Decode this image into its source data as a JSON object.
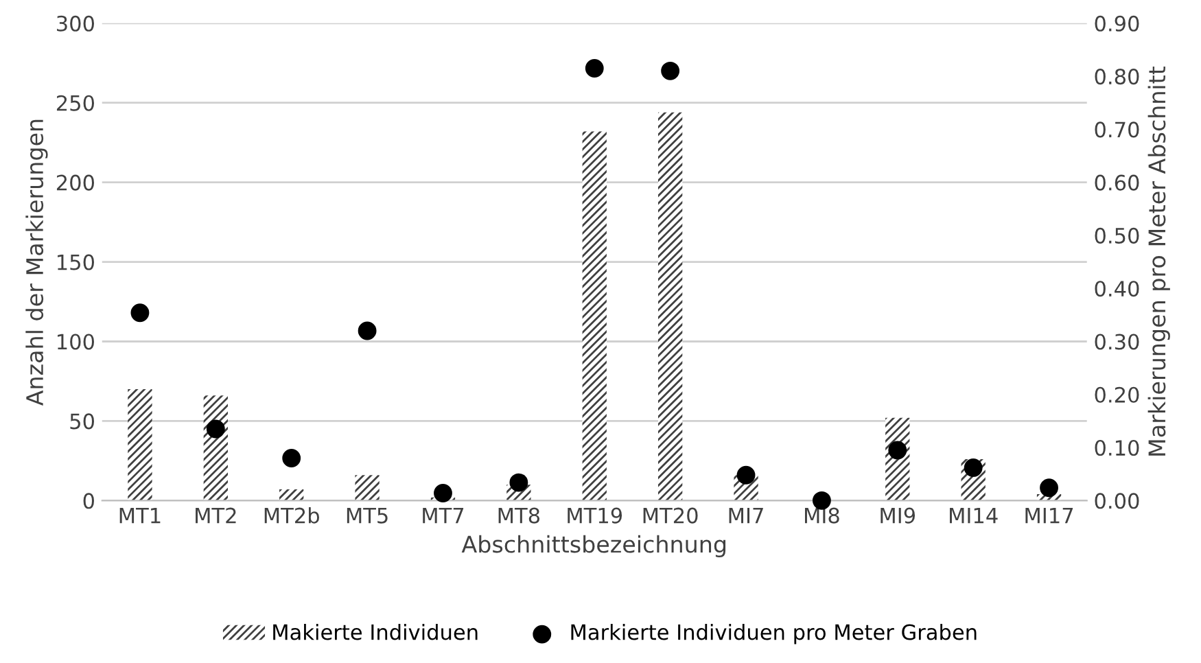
{
  "chart_data": {
    "type": "bar",
    "xlabel": "Abschnittsbezeichnung",
    "ylabel": "Anzahl der Markierungen",
    "y2label": "Markierungen pro Meter Abschnitt",
    "categories": [
      "MT1",
      "MT2",
      "MT2b",
      "MT5",
      "MT7",
      "MT8",
      "MT19",
      "MT20",
      "MI7",
      "MI8",
      "MI9",
      "MI14",
      "MI17"
    ],
    "series": [
      {
        "name": "Makierte Individuen",
        "color": "#404040",
        "values": [
          70,
          66,
          7,
          16,
          2,
          10,
          232,
          244,
          16,
          0,
          52,
          26,
          4
        ]
      },
      {
        "name": "Markierte Individuen pro Meter Graben",
        "type": "scatter",
        "axis": "y2",
        "color": "#000000",
        "marker": "circle",
        "values": [
          0.354,
          0.135,
          0.08,
          0.32,
          0.014,
          0.034,
          0.815,
          0.81,
          0.048,
          0.0,
          0.095,
          0.062,
          0.024
        ]
      }
    ],
    "ylim": [
      0,
      300
    ],
    "yticks": [
      0,
      50,
      100,
      150,
      200,
      250,
      300
    ],
    "y2lim": [
      0,
      0.9
    ],
    "y2ticks": [
      {
        "value": 0,
        "label": "0.00"
      },
      {
        "value": 0.1,
        "label": "0.10"
      },
      {
        "value": 0.2,
        "label": "0.20"
      },
      {
        "value": 0.3,
        "label": "0.30"
      },
      {
        "value": 0.4,
        "label": "0.40"
      },
      {
        "value": 0.5,
        "label": "0.50"
      },
      {
        "value": 0.6,
        "label": "0.60"
      },
      {
        "value": 0.7,
        "label": "0.70"
      },
      {
        "value": 0.8,
        "label": "0.80"
      },
      {
        "value": 0.9,
        "label": "0.90"
      }
    ],
    "grid": "y",
    "legend": "bottom"
  }
}
